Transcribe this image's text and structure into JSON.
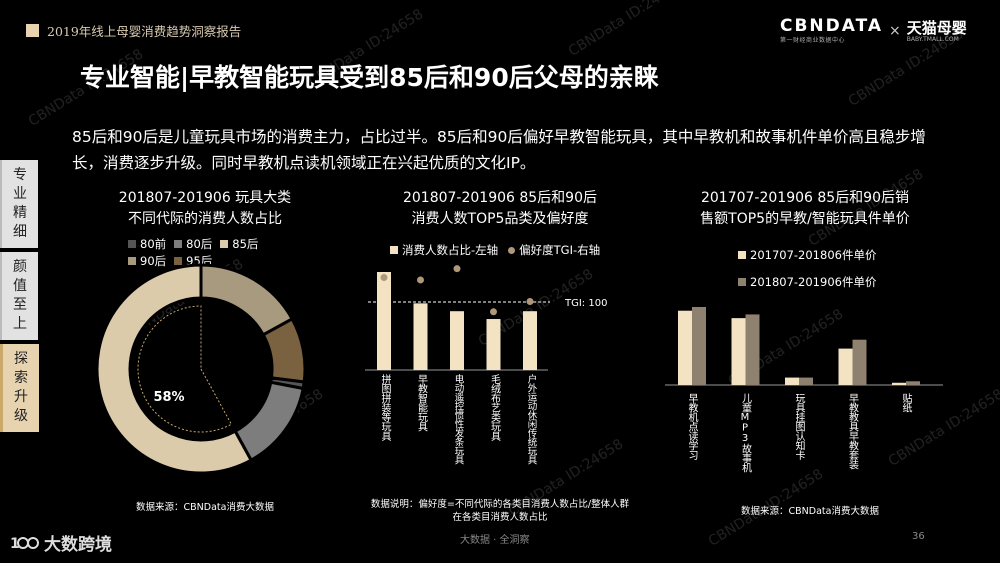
{
  "header": {
    "report_title": "2019年线上母婴消费趋势洞察报告",
    "logo_main": "CBNDATA",
    "logo_sub": "第一财经商业数据中心",
    "logo_x": "×",
    "partner_main": "天猫母婴",
    "partner_sub": "BABY.TMALL.COM"
  },
  "title": "专业智能|早教智能玩具受到85后和90后父母的亲睐",
  "description": "85后和90后是儿童玩具市场的消费主力，占比过半。85后和90后偏好早教智能玩具，其中早教机和故事机件单价高且稳步增长，消费逐步升级。同时早教机点读机领域正在兴起优质的文化IP。",
  "side_tabs": [
    "专业精细",
    "颜值至上",
    "探索升级"
  ],
  "watermark": "CBNData ID:24658",
  "chart_data": [
    {
      "type": "pie",
      "title_line1": "201807-201906 玩具大类",
      "title_line2": "不同代际的消费人数占比",
      "categories": [
        "80前",
        "80后",
        "85后",
        "90后",
        "95后"
      ],
      "values": [
        1,
        14,
        58,
        17,
        10
      ],
      "colors": [
        "#555555",
        "#7d7d7d",
        "#dccbaa",
        "#a89a7e",
        "#7a6140"
      ],
      "center_label": "58%",
      "source": "数据来源：CBNData消费大数据"
    },
    {
      "type": "bar",
      "title_line1": "201807-201906 85后和90后",
      "title_line2": "消费人数TOP5品类及偏好度",
      "legend_bar": "消费人数占比-左轴",
      "legend_dot": "偏好度TGI-右轴",
      "categories": [
        "拼图拼装等玩具",
        "早教智能玩具",
        "电动遥控惯性发条玩具",
        "毛绒布艺类玩具",
        "户外运动休闲传统玩具"
      ],
      "bar_values": [
        100,
        68,
        60,
        52,
        60
      ],
      "tgi_values": [
        150,
        145,
        168,
        80,
        101
      ],
      "tgi_reference": 100,
      "tgi_label": "TGI: 100",
      "bar_color": "#f3e3c3",
      "dot_color": "#b0977a",
      "note": "数据说明：偏好度=不同代际的各类目消费人数占比/整体人群在各类目消费人数占比"
    },
    {
      "type": "bar",
      "title_line1": "201707-201906 85后和90后销",
      "title_line2": "售额TOP5的早教/智能玩具件单价",
      "categories": [
        "早教机点读学习",
        "儿童MP3故事机",
        "玩具挂图认知卡",
        "早教教具早教套装",
        "贴纸"
      ],
      "series": [
        {
          "name": "201707-201806件单价",
          "values": [
            100,
            90,
            10,
            49,
            3
          ],
          "color": "#f3e3c3"
        },
        {
          "name": "201807-201906件单价",
          "values": [
            105,
            95,
            10,
            61,
            5
          ],
          "color": "#8f8170"
        }
      ],
      "source": "数据来源：CBNData消费大数据"
    }
  ],
  "footer": {
    "center": "大数据 · 全洞察",
    "page": "36",
    "brand": "大数跨境"
  }
}
